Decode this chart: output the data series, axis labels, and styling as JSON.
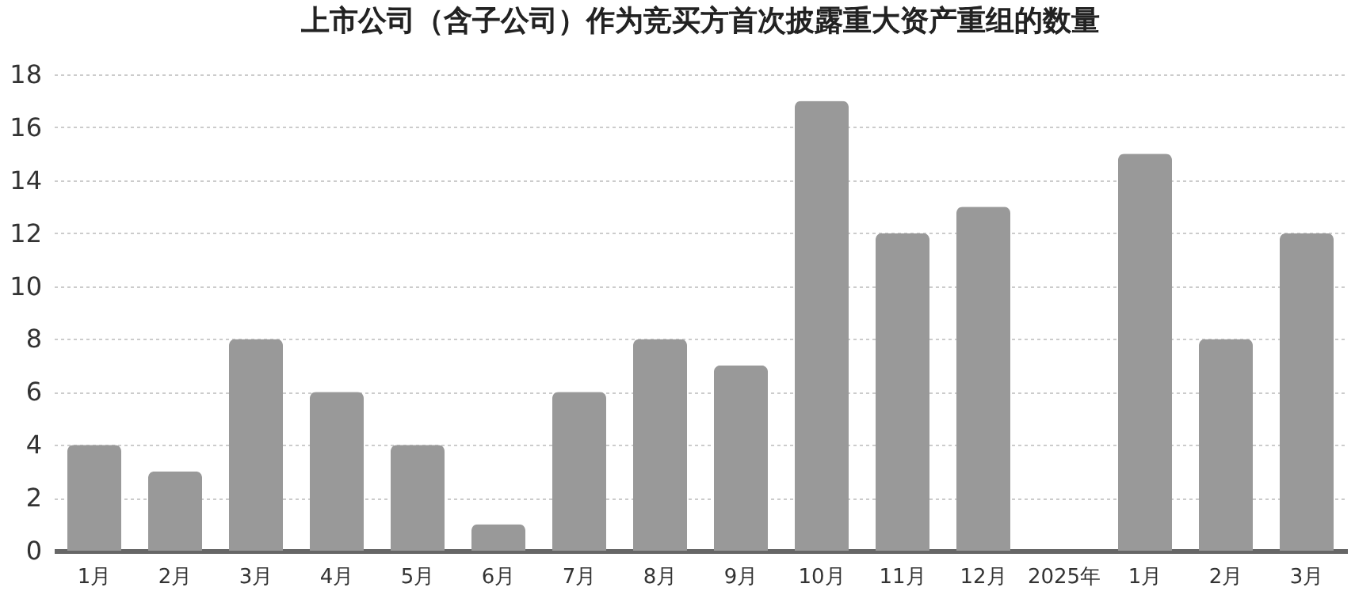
{
  "chart_data": {
    "type": "bar",
    "title": "上市公司（含子公司）作为竞买方首次披露重大资产重组的数量",
    "categories": [
      "1月",
      "2月",
      "3月",
      "4月",
      "5月",
      "6月",
      "7月",
      "8月",
      "9月",
      "10月",
      "11月",
      "12月",
      "2025年",
      "1月",
      "2月",
      "3月"
    ],
    "values": [
      4,
      3,
      8,
      6,
      4,
      1,
      6,
      8,
      7,
      17,
      12,
      13,
      null,
      15,
      8,
      12
    ],
    "color": "#999999",
    "ylim": [
      0,
      18
    ],
    "yticks": [
      0,
      2,
      4,
      6,
      8,
      10,
      12,
      14,
      16,
      18
    ],
    "grid": "y"
  }
}
